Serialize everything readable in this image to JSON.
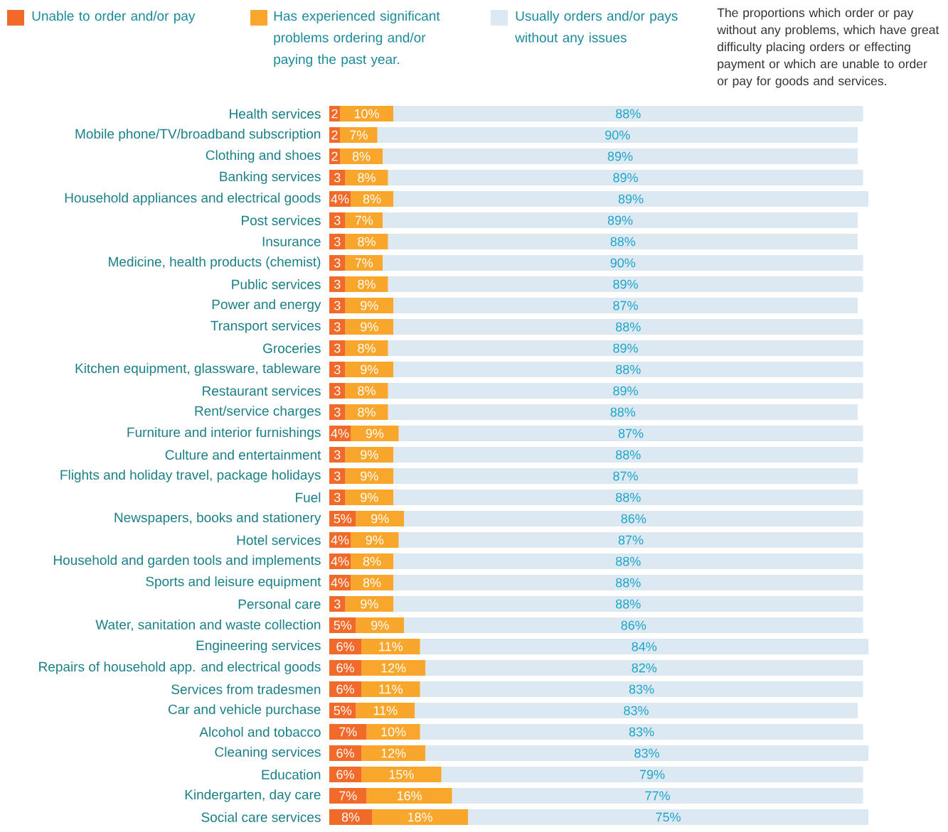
{
  "chart_data": {
    "type": "bar",
    "orientation": "horizontal",
    "stacked": true,
    "legend": "top",
    "annotations": [
      "The proportions which order or pay without any problems, which have great difficulty placing orders or effecting payment or which are unable to order or pay for goods and services."
    ],
    "categories": [
      "Health services",
      "Mobile phone/TV/broadband subscription",
      "Clothing and shoes",
      "Banking services",
      "Household appliances and electrical goods",
      "Post services",
      "Insurance",
      "Medicine, health products (chemist)",
      "Public services",
      "Power and energy",
      "Transport services",
      "Groceries",
      "Kitchen equipment, glassware, tableware",
      "Restaurant services",
      "Rent/service charges",
      "Furniture and interior furnishings",
      "Culture and entertainment",
      "Flights and holiday travel, package holidays",
      "Fuel",
      "Newspapers, books and stationery",
      "Hotel services",
      "Household and garden tools and implements",
      "Sports and leisure equipment",
      "Personal care",
      "Water, sanitation and waste collection",
      "Engineering services",
      "Repairs of household app. and electrical goods",
      "Services from tradesmen",
      "Car and vehicle purchase",
      "Alcohol and tobacco",
      "Cleaning services",
      "Education",
      "Kindergarten, day care",
      "Social care services"
    ],
    "series": [
      {
        "name": "Unable to order and/or pay",
        "color": "#f26a2a",
        "values": [
          2,
          2,
          2,
          3,
          4,
          3,
          3,
          3,
          3,
          3,
          3,
          3,
          3,
          3,
          3,
          4,
          3,
          3,
          3,
          5,
          4,
          4,
          4,
          3,
          5,
          6,
          6,
          6,
          5,
          7,
          6,
          6,
          7,
          8
        ],
        "value_labels": [
          "2",
          "2",
          "2",
          "3",
          "4%",
          "3",
          "3",
          "3",
          "3",
          "3",
          "3",
          "3",
          "3",
          "3",
          "3",
          "4%",
          "3",
          "3",
          "3",
          "5%",
          "4%",
          "4%",
          "4%",
          "3",
          "5%",
          "6%",
          "6%",
          "6%",
          "5%",
          "7%",
          "6%",
          "6%",
          "7%",
          "8%"
        ]
      },
      {
        "name": "Has experienced significant problems ordering and/or paying the past year.",
        "color": "#f8a72c",
        "values": [
          10,
          7,
          8,
          8,
          8,
          7,
          8,
          7,
          8,
          9,
          9,
          8,
          9,
          8,
          8,
          9,
          9,
          9,
          9,
          9,
          9,
          8,
          8,
          9,
          9,
          11,
          12,
          11,
          11,
          10,
          12,
          15,
          16,
          18
        ],
        "value_labels": [
          "10%",
          "7%",
          "8%",
          "8%",
          "8%",
          "7%",
          "8%",
          "7%",
          "8%",
          "9%",
          "9%",
          "8%",
          "9%",
          "8%",
          "8%",
          "9%",
          "9%",
          "9%",
          "9%",
          "9%",
          "9%",
          "8%",
          "8%",
          "9%",
          "9%",
          "11%",
          "12%",
          "11%",
          "11%",
          "10%",
          "12%",
          "15%",
          "16%",
          "18%"
        ]
      },
      {
        "name": "Usually orders and/or pays without any issues",
        "color": "#dde9f2",
        "values": [
          88,
          90,
          89,
          89,
          89,
          89,
          88,
          90,
          89,
          87,
          88,
          89,
          88,
          89,
          88,
          87,
          88,
          87,
          88,
          86,
          87,
          88,
          88,
          88,
          86,
          84,
          82,
          83,
          83,
          83,
          83,
          79,
          77,
          75
        ],
        "value_labels": [
          "88%",
          "90%",
          "89%",
          "89%",
          "89%",
          "89%",
          "88%",
          "90%",
          "89%",
          "87%",
          "88%",
          "89%",
          "88%",
          "89%",
          "88%",
          "87%",
          "88%",
          "87%",
          "88%",
          "86%",
          "87%",
          "88%",
          "88%",
          "88%",
          "86%",
          "84%",
          "82%",
          "83%",
          "83%",
          "83%",
          "83%",
          "79%",
          "77%",
          "75%"
        ]
      }
    ]
  }
}
